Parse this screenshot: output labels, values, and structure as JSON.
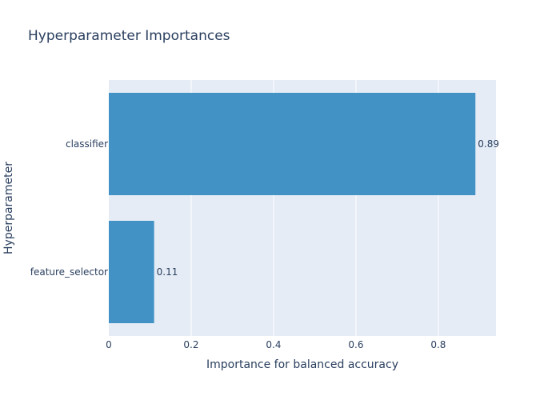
{
  "chart_data": {
    "type": "bar",
    "orientation": "horizontal",
    "title": "Hyperparameter Importances",
    "xlabel": "Importance for balanced accuracy",
    "ylabel": "Hyperparameter",
    "categories": [
      "classifier",
      "feature_selector"
    ],
    "values": [
      0.89,
      0.11
    ],
    "value_labels": [
      "0.89",
      "0.11"
    ],
    "xlim": [
      0,
      0.94
    ],
    "xticks": [
      0,
      0.2,
      0.4,
      0.6,
      0.8
    ],
    "xtick_labels": [
      "0",
      "0.2",
      "0.4",
      "0.6",
      "0.8"
    ],
    "grid": true,
    "legend": false,
    "colors": {
      "bar": "#4292c6",
      "plot_bg": "#e5ecf6",
      "grid": "#ffffff",
      "text": "#2a3f5f"
    }
  }
}
